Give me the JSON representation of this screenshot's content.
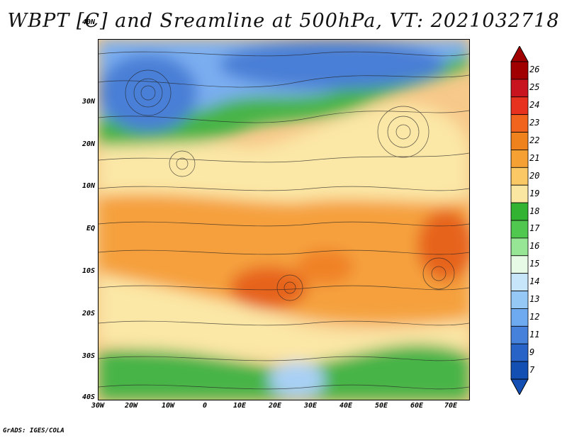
{
  "title": "WBPT [C] and Sreamline at 500hPa, VT: 2021032718",
  "footer": "GrADS: IGES/COLA",
  "lat_labels": [
    "40N",
    "30N",
    "20N",
    "10N",
    "EQ",
    "10S",
    "20S",
    "30S",
    "40S"
  ],
  "lon_labels": [
    "30W",
    "20W",
    "10W",
    "0",
    "10E",
    "20E",
    "30E",
    "40E",
    "50E",
    "60E",
    "70E"
  ],
  "colorbar": {
    "labels": [
      "26",
      "25",
      "24",
      "23",
      "22",
      "21",
      "20",
      "19",
      "18",
      "17",
      "16",
      "15",
      "14",
      "13",
      "12",
      "11",
      "9",
      "7"
    ],
    "colors": [
      "#a00000",
      "#c8141e",
      "#e6321e",
      "#f0641e",
      "#f0821e",
      "#f5a032",
      "#fac864",
      "#fae6a0",
      "#32b432",
      "#50c850",
      "#96e696",
      "#e6fae6",
      "#c8e6fa",
      "#96c8f5",
      "#6eaaf0",
      "#4682dc",
      "#2864c8",
      "#1450b4"
    ]
  },
  "legend_colors": {
    "cold_blue": "#4a7fd6",
    "light_blue": "#a8d0f5",
    "green": "#46b446",
    "light_green": "#96e696",
    "pale_yellow": "#fbe7a6",
    "orange": "#f5a03c",
    "dark_orange": "#f07828",
    "red": "#e6502a"
  }
}
